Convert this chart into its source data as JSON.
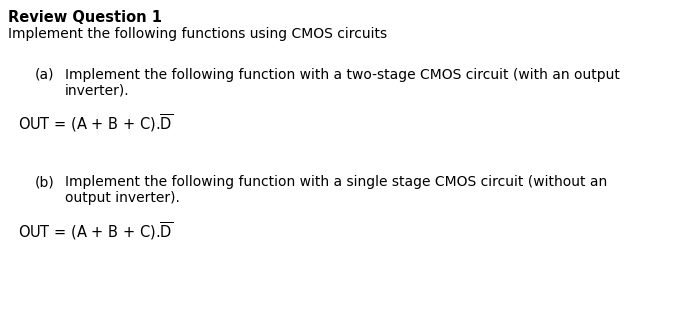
{
  "title": "Review Question 1",
  "subtitle": "Implement the following functions using CMOS circuits",
  "part_a_label": "(a)",
  "part_a_line1": "Implement the following function with a two-stage CMOS circuit (with an output",
  "part_a_line2": "inverter).",
  "part_b_label": "(b)",
  "part_b_line1": "Implement the following function with a single stage CMOS circuit (without an",
  "part_b_line2": "output inverter).",
  "background_color": "#ffffff",
  "text_color": "#000000",
  "title_fontsize": 10.5,
  "body_fontsize": 10.0,
  "formula_fontsize": 10.5
}
